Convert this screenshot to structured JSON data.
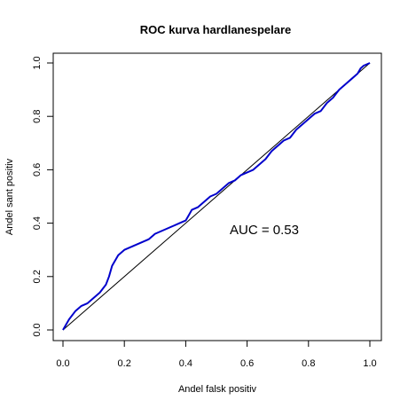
{
  "chart_data": {
    "type": "line",
    "title": "ROC kurva hardlanespelare",
    "xlabel": "Andel falsk positiv",
    "ylabel": "Andel sant positiv",
    "xlim": [
      0,
      1
    ],
    "ylim": [
      0,
      1
    ],
    "x_ticks": [
      "0.0",
      "0.2",
      "0.4",
      "0.6",
      "0.8",
      "1.0"
    ],
    "y_ticks": [
      "0.0",
      "0.2",
      "0.4",
      "0.6",
      "0.8",
      "1.0"
    ],
    "grid": false,
    "annotation": "AUC  = 0.53",
    "series": [
      {
        "color": "#0000cc",
        "x": [
          0.0,
          0.01,
          0.02,
          0.04,
          0.06,
          0.08,
          0.1,
          0.12,
          0.14,
          0.15,
          0.16,
          0.17,
          0.18,
          0.2,
          0.22,
          0.24,
          0.26,
          0.28,
          0.3,
          0.32,
          0.34,
          0.36,
          0.38,
          0.4,
          0.41,
          0.42,
          0.44,
          0.46,
          0.48,
          0.5,
          0.52,
          0.54,
          0.56,
          0.58,
          0.6,
          0.62,
          0.64,
          0.66,
          0.68,
          0.7,
          0.72,
          0.74,
          0.76,
          0.78,
          0.8,
          0.82,
          0.84,
          0.86,
          0.88,
          0.9,
          0.92,
          0.94,
          0.96,
          0.97,
          0.98,
          1.0
        ],
        "y": [
          0.0,
          0.02,
          0.04,
          0.07,
          0.09,
          0.1,
          0.12,
          0.14,
          0.17,
          0.2,
          0.24,
          0.26,
          0.28,
          0.3,
          0.31,
          0.32,
          0.33,
          0.34,
          0.36,
          0.37,
          0.38,
          0.39,
          0.4,
          0.41,
          0.43,
          0.45,
          0.46,
          0.48,
          0.5,
          0.51,
          0.53,
          0.55,
          0.56,
          0.58,
          0.59,
          0.6,
          0.62,
          0.64,
          0.67,
          0.69,
          0.71,
          0.72,
          0.75,
          0.77,
          0.79,
          0.81,
          0.82,
          0.85,
          0.87,
          0.9,
          0.92,
          0.94,
          0.96,
          0.98,
          0.99,
          1.0
        ]
      },
      {
        "color": "#000000",
        "x": [
          0,
          1
        ],
        "y": [
          0,
          1
        ]
      }
    ]
  }
}
